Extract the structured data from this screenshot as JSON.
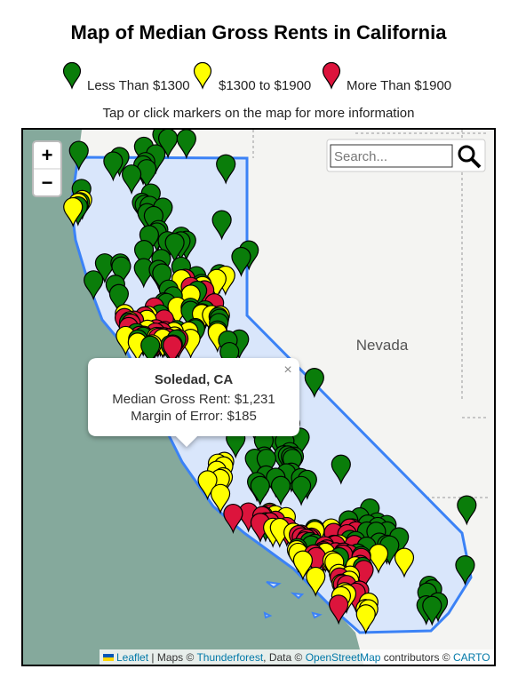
{
  "title": "Map of Median Gross Rents in California",
  "legend": [
    {
      "label": "Less Than $1300",
      "color": "#0a7d0a"
    },
    {
      "label": "$1300 to $1900",
      "color": "#ffff00"
    },
    {
      "label": "More Than $1900",
      "color": "#dc143c"
    }
  ],
  "instructions": "Tap or click markers on the map for more information",
  "map": {
    "zoom_in": "+",
    "zoom_out": "−",
    "search_placeholder": "Search...",
    "region_label": "Nevada",
    "popup": {
      "title": "Soledad, CA",
      "lines": [
        "Median Gross Rent: $1,231",
        "Margin of Error: $185"
      ],
      "close": "×"
    },
    "attribution": [
      {
        "text": "Leaflet",
        "link": true
      },
      {
        "text": " | Maps © ",
        "link": false
      },
      {
        "text": "Thunderforest",
        "link": true
      },
      {
        "text": ", Data © ",
        "link": false
      },
      {
        "text": "OpenStreetMap",
        "link": true
      },
      {
        "text": " contributors © ",
        "link": false
      },
      {
        "text": "CARTO",
        "link": true
      }
    ]
  }
}
